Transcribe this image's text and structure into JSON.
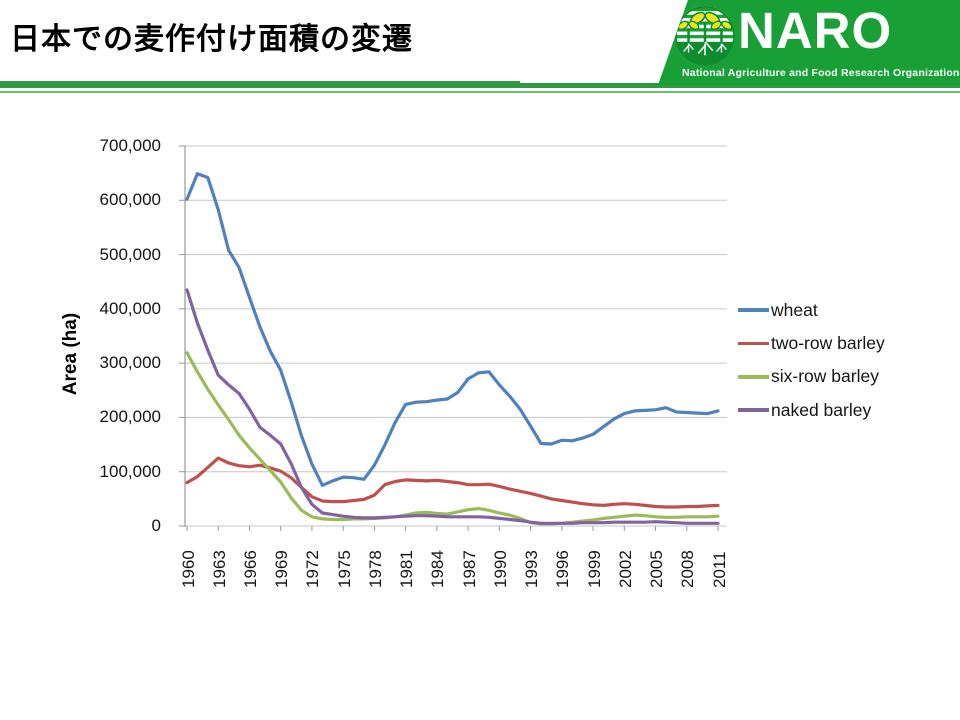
{
  "slide": {
    "title": "日本での麦作付け面積の変遷"
  },
  "logo": {
    "name": "NARO",
    "subtitle": "National Agriculture and Food Research Organization",
    "icon": "naro-sprout-logo",
    "banner_green": "#18A037",
    "stripe_green": "#2E9B44",
    "thin_line_green": "#6CBE76"
  },
  "chart_data": {
    "type": "line",
    "title": "",
    "xlabel": "",
    "ylabel": "Area (ha)",
    "ylim": [
      0,
      700000
    ],
    "ytick_step": 100000,
    "x_start": 1960,
    "x_end": 2011,
    "xtick_step": 3,
    "grid": true,
    "legend_position": "right",
    "x": [
      1960,
      1961,
      1962,
      1963,
      1964,
      1965,
      1966,
      1967,
      1968,
      1969,
      1970,
      1971,
      1972,
      1973,
      1974,
      1975,
      1976,
      1977,
      1978,
      1979,
      1980,
      1981,
      1982,
      1983,
      1984,
      1985,
      1986,
      1987,
      1988,
      1989,
      1990,
      1991,
      1992,
      1993,
      1994,
      1995,
      1996,
      1997,
      1998,
      1999,
      2000,
      2001,
      2002,
      2003,
      2004,
      2005,
      2006,
      2007,
      2008,
      2009,
      2010,
      2011
    ],
    "series": [
      {
        "name": "wheat",
        "color": "#4F81BD",
        "values": [
          602000,
          649000,
          642000,
          583000,
          508000,
          476000,
          421000,
          367000,
          322000,
          287000,
          229000,
          166000,
          114000,
          75000,
          83000,
          90000,
          89000,
          86000,
          112000,
          149000,
          191000,
          224000,
          228000,
          229000,
          232000,
          234000,
          246000,
          271000,
          282000,
          284000,
          260000,
          239000,
          215000,
          184000,
          152000,
          151000,
          158000,
          157000,
          162000,
          169000,
          183000,
          197000,
          207000,
          212000,
          213000,
          214000,
          218000,
          210000,
          209000,
          208000,
          207000,
          212000
        ]
      },
      {
        "name": "two-row barley",
        "color": "#C0504D",
        "values": [
          80000,
          91000,
          108000,
          125000,
          116000,
          111000,
          109000,
          112000,
          107000,
          101000,
          89000,
          71000,
          54000,
          46000,
          45000,
          45000,
          47000,
          49000,
          57000,
          76000,
          82000,
          85000,
          84000,
          83000,
          84000,
          82000,
          80000,
          76000,
          76000,
          77000,
          73000,
          68000,
          64000,
          60000,
          55000,
          50000,
          47000,
          44000,
          41000,
          39000,
          38000,
          40000,
          41000,
          40000,
          38000,
          36000,
          35000,
          35000,
          36000,
          36000,
          37000,
          38000
        ]
      },
      {
        "name": "six-row barley",
        "color": "#9BBB59",
        "values": [
          319000,
          284000,
          252000,
          223000,
          196000,
          167000,
          144000,
          123000,
          102000,
          81000,
          52000,
          29000,
          17000,
          13000,
          12000,
          12000,
          13000,
          13000,
          14000,
          15000,
          17000,
          20000,
          24000,
          25000,
          23000,
          22000,
          26000,
          30000,
          32000,
          29000,
          24000,
          20000,
          14000,
          6000,
          4000,
          4000,
          5000,
          7000,
          9000,
          11000,
          14000,
          16000,
          18000,
          20000,
          19000,
          17000,
          16000,
          16000,
          17000,
          17000,
          17000,
          18000
        ]
      },
      {
        "name": "naked barley",
        "color": "#8064A2",
        "values": [
          435000,
          374000,
          324000,
          278000,
          260000,
          244000,
          215000,
          182000,
          167000,
          151000,
          115000,
          71000,
          40000,
          24000,
          21000,
          18000,
          16000,
          15000,
          15000,
          16000,
          17000,
          18000,
          19000,
          19000,
          18000,
          17000,
          17000,
          17000,
          17000,
          16000,
          14000,
          12000,
          10000,
          7000,
          5000,
          5000,
          5000,
          5000,
          6000,
          6000,
          6000,
          7000,
          7000,
          7000,
          7000,
          8000,
          7000,
          6000,
          5000,
          5000,
          5000,
          5000
        ]
      }
    ]
  }
}
